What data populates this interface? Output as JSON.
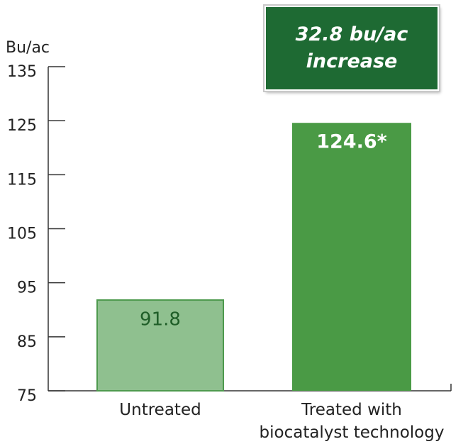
{
  "chart_data": {
    "type": "bar",
    "ylabel": "Bu/ac",
    "categories": [
      "Untreated",
      "Treated with\nbiocatalyst technology"
    ],
    "values": [
      91.8,
      124.6
    ],
    "value_labels": [
      "91.8",
      "124.6*"
    ],
    "colors": [
      "#8fc08f",
      "#4a9a45"
    ],
    "annotation": "32.8 bu/ac\nincrease",
    "ylim": [
      75,
      135
    ],
    "yticks": [
      75,
      85,
      95,
      105,
      115,
      125,
      135
    ]
  }
}
